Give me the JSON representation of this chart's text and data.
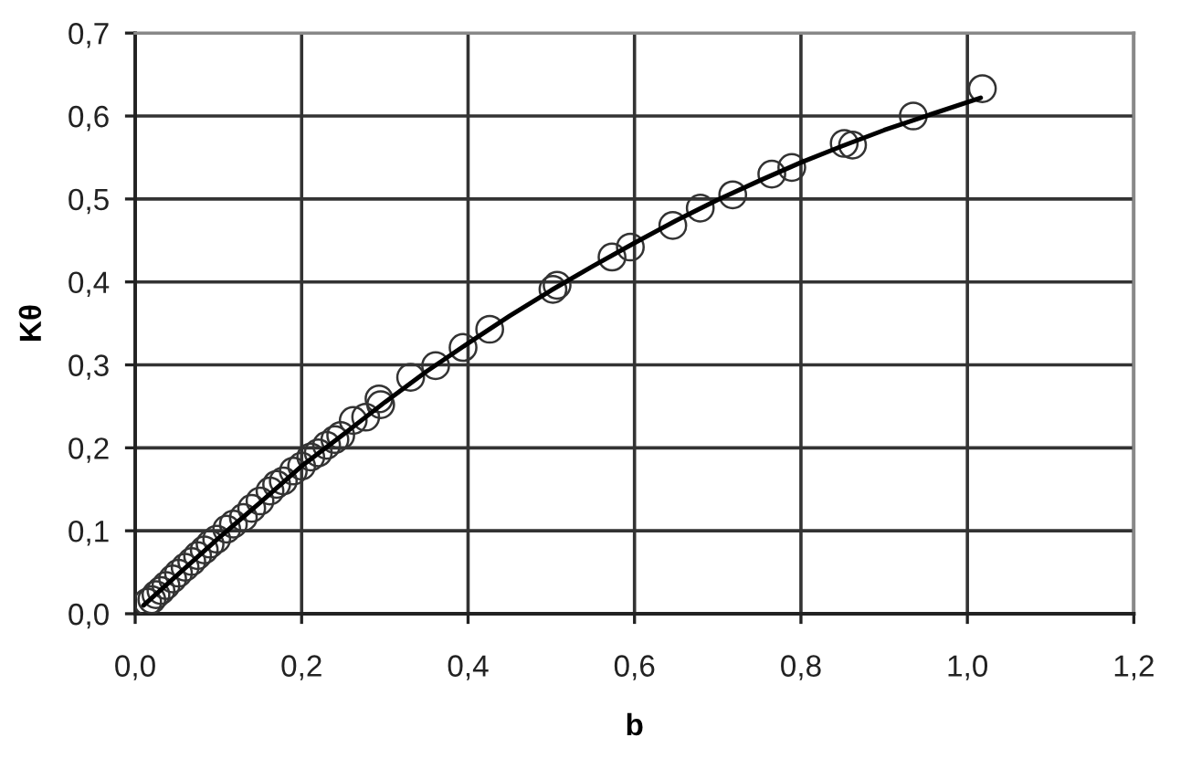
{
  "chart_data": {
    "type": "scatter",
    "xlabel": "b",
    "ylabel": "Kθ",
    "xlim": [
      0,
      1.2
    ],
    "ylim": [
      0,
      0.7
    ],
    "xticks": [
      {
        "value": 0,
        "label": "0,0"
      },
      {
        "value": 0.2,
        "label": "0,2"
      },
      {
        "value": 0.4,
        "label": "0,4"
      },
      {
        "value": 0.6,
        "label": "0,6"
      },
      {
        "value": 0.8,
        "label": "0,8"
      },
      {
        "value": 1.0,
        "label": "1,0"
      },
      {
        "value": 1.2,
        "label": "1,2"
      }
    ],
    "yticks": [
      {
        "value": 0,
        "label": "0,0"
      },
      {
        "value": 0.1,
        "label": "0,1"
      },
      {
        "value": 0.2,
        "label": "0,2"
      },
      {
        "value": 0.3,
        "label": "0,3"
      },
      {
        "value": 0.4,
        "label": "0,4"
      },
      {
        "value": 0.5,
        "label": "0,5"
      },
      {
        "value": 0.6,
        "label": "0,6"
      },
      {
        "value": 0.7,
        "label": "0,7"
      }
    ],
    "grid": true,
    "series": [
      {
        "color": "#333333",
        "marker": "circle",
        "x": [
          0.015,
          0.02,
          0.025,
          0.031,
          0.037,
          0.045,
          0.052,
          0.06,
          0.068,
          0.075,
          0.083,
          0.09,
          0.098,
          0.11,
          0.118,
          0.13,
          0.14,
          0.15,
          0.162,
          0.17,
          0.178,
          0.19,
          0.2,
          0.211,
          0.22,
          0.23,
          0.24,
          0.247,
          0.262,
          0.277,
          0.293,
          0.295,
          0.331,
          0.361,
          0.394,
          0.426,
          0.502,
          0.507,
          0.573,
          0.595,
          0.646,
          0.679,
          0.718,
          0.765,
          0.789,
          0.852,
          0.862,
          0.935,
          1.018
        ],
        "values": [
          0.014,
          0.017,
          0.023,
          0.028,
          0.034,
          0.042,
          0.049,
          0.056,
          0.063,
          0.07,
          0.077,
          0.084,
          0.09,
          0.102,
          0.108,
          0.116,
          0.127,
          0.136,
          0.148,
          0.156,
          0.16,
          0.172,
          0.178,
          0.189,
          0.194,
          0.203,
          0.21,
          0.215,
          0.233,
          0.237,
          0.259,
          0.252,
          0.285,
          0.299,
          0.321,
          0.343,
          0.391,
          0.396,
          0.43,
          0.442,
          0.468,
          0.489,
          0.505,
          0.53,
          0.538,
          0.567,
          0.565,
          0.6,
          0.633
        ]
      },
      {
        "type": "line",
        "color": "#000000",
        "marker": "none",
        "line_style": "solid",
        "x": [
          0.01,
          0.05,
          0.1,
          0.15,
          0.2,
          0.25,
          0.3,
          0.35,
          0.4,
          0.45,
          0.5,
          0.55,
          0.6,
          0.65,
          0.7,
          0.75,
          0.8,
          0.85,
          0.9,
          0.95,
          1.016
        ],
        "values": [
          0.01,
          0.046,
          0.091,
          0.134,
          0.178,
          0.216,
          0.255,
          0.292,
          0.326,
          0.359,
          0.39,
          0.419,
          0.447,
          0.474,
          0.499,
          0.522,
          0.544,
          0.564,
          0.583,
          0.6,
          0.622
        ]
      }
    ]
  }
}
